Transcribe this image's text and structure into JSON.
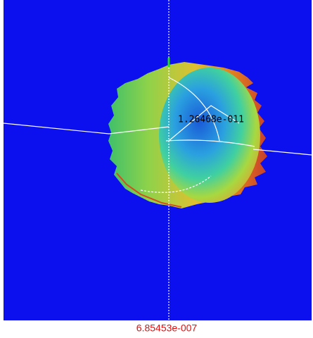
{
  "viewport": {
    "center_label": "1.26468e-011"
  },
  "footer": {
    "value_label": "6.85453e-007"
  }
}
